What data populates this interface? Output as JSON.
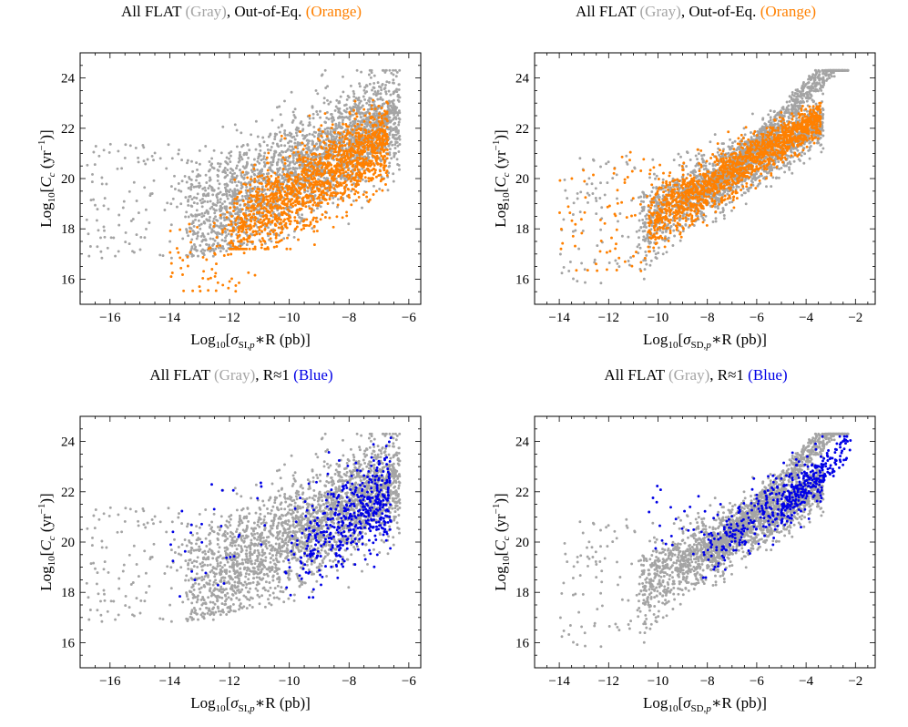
{
  "colors": {
    "gray": "#a4a4a4",
    "orange": "#ff8000",
    "blue": "#0000e6",
    "axis": "#000000"
  },
  "labels": {
    "y_axis": {
      "log": "Log",
      "base": "10",
      "open": "[",
      "var": "C",
      "var_sub": "c",
      "unit_open": " (yr",
      "exp": "−1",
      "close": ")]"
    },
    "x_axis_si": {
      "log": "Log",
      "base": "10",
      "open": "[",
      "sigma": "σ",
      "sub": "SI,",
      "sub_p": "p",
      "rest": "∗R (pb)]"
    },
    "x_axis_sd": {
      "log": "Log",
      "base": "10",
      "open": "[",
      "sigma": "σ",
      "sub": "SD,",
      "sub_p": "p",
      "rest": "∗R (pb)]"
    }
  },
  "chart_data": [
    {
      "type": "scatter",
      "id": "si_out_of_eq",
      "title": {
        "part1": "All FLAT ",
        "gray": "(Gray)",
        "part2": ", Out-of-Eq. ",
        "highlight": "(Orange)",
        "highlight_color": "orange"
      },
      "xlabel": "Log10[σSI,p*R (pb)]",
      "ylabel": "Log10[Cc (yr^-1)]",
      "xlim": [
        -17,
        -5.6
      ],
      "ylim": [
        15,
        25
      ],
      "xticks": [
        -16,
        -14,
        -12,
        -10,
        -8,
        -6
      ],
      "yticks": [
        16,
        18,
        20,
        22,
        24
      ],
      "series": [
        {
          "name": "All FLAT",
          "color": "gray",
          "shape": "si-full",
          "n": 2600
        },
        {
          "name": "Out-of-Eq.",
          "color": "orange",
          "shape": "si-orange",
          "n": 1500
        }
      ]
    },
    {
      "type": "scatter",
      "id": "sd_out_of_eq",
      "title": {
        "part1": "All FLAT ",
        "gray": "(Gray)",
        "part2": ", Out-of-Eq. ",
        "highlight": "(Orange)",
        "highlight_color": "orange"
      },
      "xlabel": "Log10[σSD,p*R (pb)]",
      "ylabel": "Log10[Cc (yr^-1)]",
      "xlim": [
        -15,
        -1.2
      ],
      "ylim": [
        15,
        25
      ],
      "xticks": [
        -14,
        -12,
        -10,
        -8,
        -6,
        -4,
        -2
      ],
      "yticks": [
        16,
        18,
        20,
        22,
        24
      ],
      "series": [
        {
          "name": "All FLAT",
          "color": "gray",
          "shape": "sd-full",
          "n": 2600
        },
        {
          "name": "Out-of-Eq.",
          "color": "orange",
          "shape": "sd-orange",
          "n": 1500
        }
      ]
    },
    {
      "type": "scatter",
      "id": "si_r1",
      "title": {
        "part1": "All FLAT ",
        "gray": "(Gray)",
        "part2": ", R≈1 ",
        "highlight": "(Blue)",
        "highlight_color": "blue"
      },
      "xlabel": "Log10[σSI,p*R (pb)]",
      "ylabel": "Log10[Cc (yr^-1)]",
      "xlim": [
        -17,
        -5.6
      ],
      "ylim": [
        15,
        25
      ],
      "xticks": [
        -16,
        -14,
        -12,
        -10,
        -8,
        -6
      ],
      "yticks": [
        16,
        18,
        20,
        22,
        24
      ],
      "series": [
        {
          "name": "All FLAT",
          "color": "gray",
          "shape": "si-full",
          "n": 2600
        },
        {
          "name": "R≈1",
          "color": "blue",
          "shape": "si-blue",
          "n": 500
        }
      ]
    },
    {
      "type": "scatter",
      "id": "sd_r1",
      "title": {
        "part1": "All FLAT ",
        "gray": "(Gray)",
        "part2": ", R≈1 ",
        "highlight": "(Blue)",
        "highlight_color": "blue"
      },
      "xlabel": "Log10[σSD,p*R (pb)]",
      "ylabel": "Log10[Cc (yr^-1)]",
      "xlim": [
        -15,
        -1.2
      ],
      "ylim": [
        15,
        25
      ],
      "xticks": [
        -14,
        -12,
        -10,
        -8,
        -6,
        -4,
        -2
      ],
      "yticks": [
        16,
        18,
        20,
        22,
        24
      ],
      "series": [
        {
          "name": "All FLAT",
          "color": "gray",
          "shape": "sd-full",
          "n": 2600
        },
        {
          "name": "R≈1",
          "color": "blue",
          "shape": "sd-blue",
          "n": 500
        }
      ]
    }
  ]
}
